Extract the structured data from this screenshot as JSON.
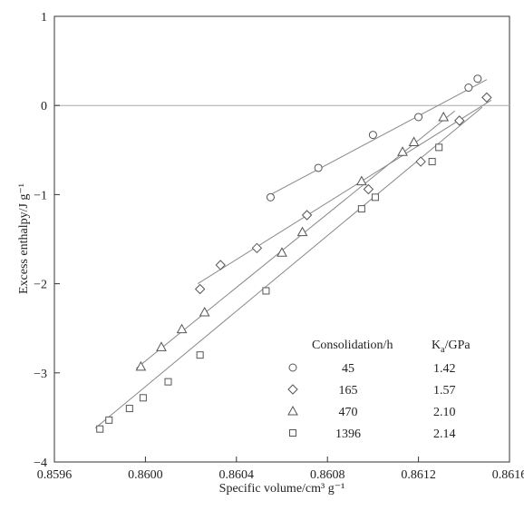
{
  "chart_data": {
    "type": "scatter",
    "xlabel": "Specific volume/cm³ g⁻¹",
    "ylabel": "Excess enthalpy/J g⁻¹",
    "xlim": [
      0.8596,
      0.8616
    ],
    "ylim": [
      -4,
      1
    ],
    "xticks": [
      0.8596,
      0.86,
      0.8604,
      0.8608,
      0.8612,
      0.8616
    ],
    "xtick_labels": [
      "0.8596",
      "0.8600",
      "0.8604",
      "0.8608",
      "0.8612",
      "0.8616"
    ],
    "yticks": [
      -4,
      -3,
      -2,
      -1,
      0,
      1
    ],
    "ytick_labels": [
      "−4",
      "−3",
      "−2",
      "−1",
      "0",
      "1"
    ],
    "zero_line": true,
    "grid": false,
    "legend": {
      "position": "bottom-right",
      "col1_header": "Consolidation/h",
      "col2_header_main": "K",
      "col2_header_sub": "a",
      "col2_header_rest": "/GPa"
    },
    "series": [
      {
        "marker": "circle",
        "consolidation": "45",
        "ka": "1.42",
        "points": [
          [
            0.86055,
            -1.03
          ],
          [
            0.86076,
            -0.7
          ],
          [
            0.861,
            -0.33
          ],
          [
            0.8612,
            -0.13
          ],
          [
            0.86142,
            0.2
          ],
          [
            0.86146,
            0.3
          ]
        ],
        "fit": [
          [
            0.86055,
            -1.0
          ],
          [
            0.8615,
            0.29
          ]
        ]
      },
      {
        "marker": "diamond",
        "consolidation": "165",
        "ka": "1.57",
        "points": [
          [
            0.86024,
            -2.06
          ],
          [
            0.86033,
            -1.79
          ],
          [
            0.86049,
            -1.6
          ],
          [
            0.86071,
            -1.23
          ],
          [
            0.86098,
            -0.94
          ],
          [
            0.86121,
            -0.63
          ],
          [
            0.86138,
            -0.17
          ],
          [
            0.8615,
            0.09
          ]
        ],
        "fit": [
          [
            0.86023,
            -2.0
          ],
          [
            0.86152,
            0.06
          ]
        ]
      },
      {
        "marker": "triangle",
        "consolidation": "470",
        "ka": "2.10",
        "points": [
          [
            0.85998,
            -2.93
          ],
          [
            0.86007,
            -2.71
          ],
          [
            0.86016,
            -2.51
          ],
          [
            0.86026,
            -2.32
          ],
          [
            0.8606,
            -1.65
          ],
          [
            0.86069,
            -1.42
          ],
          [
            0.86095,
            -0.85
          ],
          [
            0.86113,
            -0.52
          ],
          [
            0.86118,
            -0.41
          ],
          [
            0.86131,
            -0.13
          ]
        ],
        "fit": [
          [
            0.85996,
            -2.95
          ],
          [
            0.86136,
            -0.06
          ]
        ]
      },
      {
        "marker": "square",
        "consolidation": "1396",
        "ka": "2.14",
        "points": [
          [
            0.8598,
            -3.63
          ],
          [
            0.85984,
            -3.53
          ],
          [
            0.85993,
            -3.4
          ],
          [
            0.85999,
            -3.28
          ],
          [
            0.8601,
            -3.1
          ],
          [
            0.86024,
            -2.8
          ],
          [
            0.86053,
            -2.08
          ],
          [
            0.86095,
            -1.16
          ],
          [
            0.86101,
            -1.03
          ],
          [
            0.86126,
            -0.63
          ],
          [
            0.86129,
            -0.47
          ]
        ],
        "fit": [
          [
            0.85978,
            -3.62
          ],
          [
            0.86148,
            -0.02
          ]
        ]
      }
    ]
  }
}
